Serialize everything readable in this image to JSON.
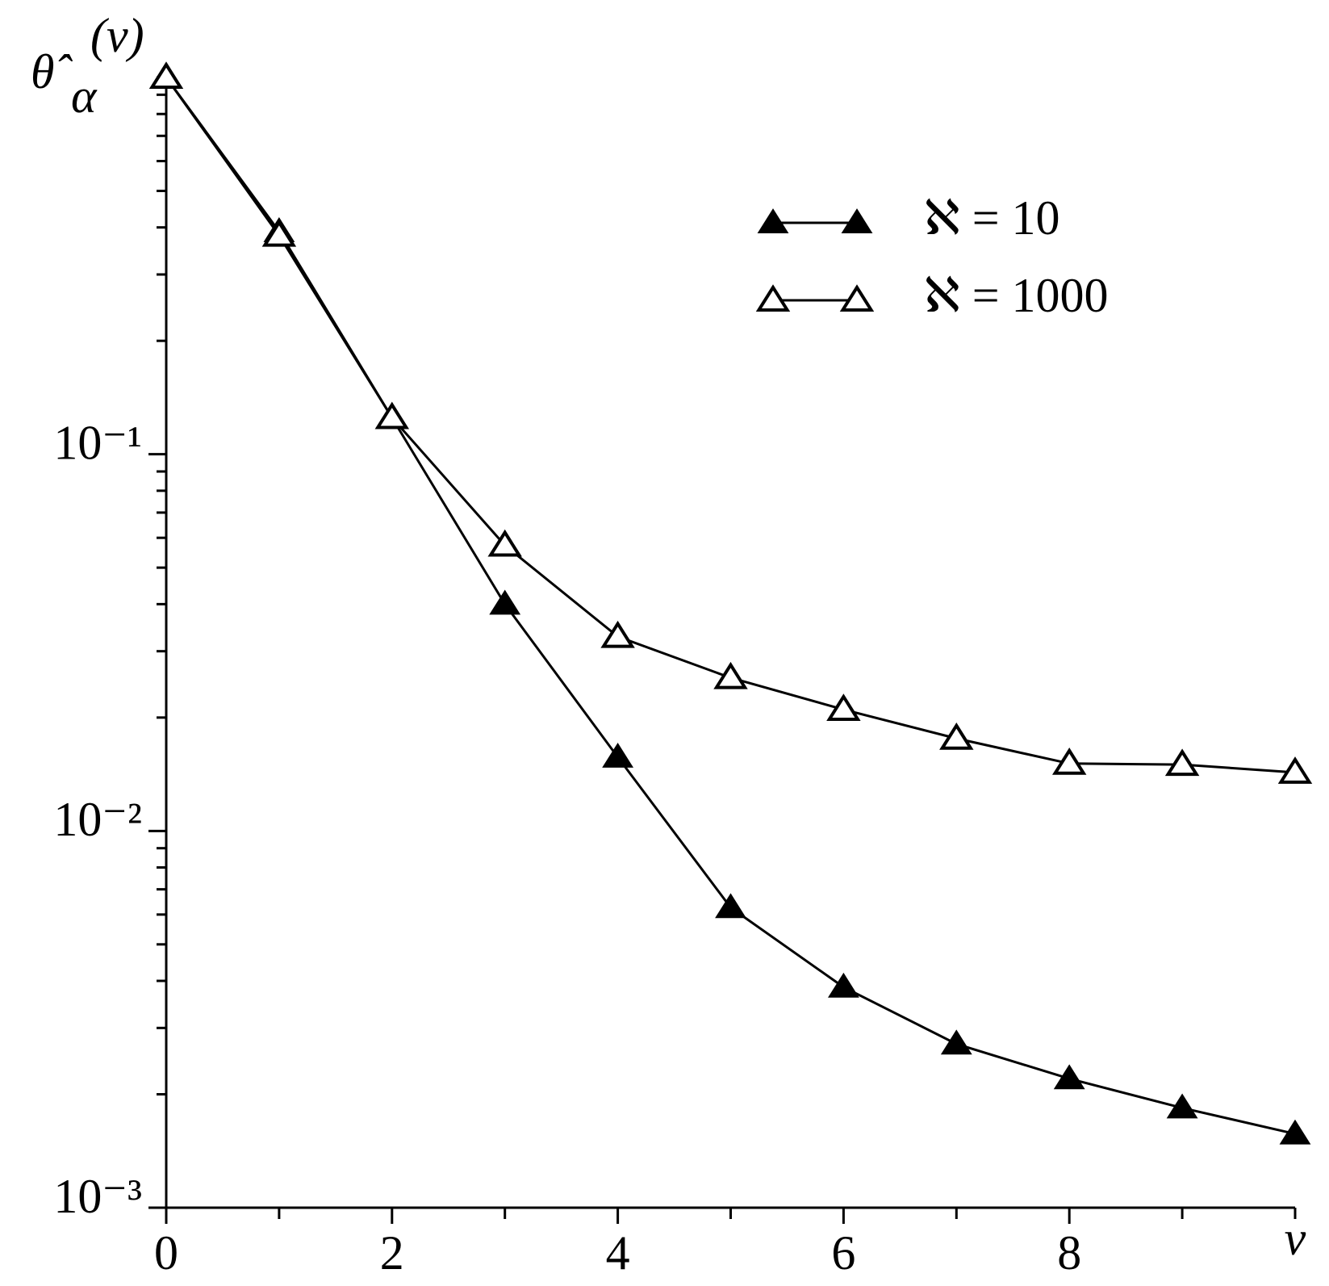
{
  "chart_data": {
    "type": "line",
    "ylabel": {
      "base": "θ̂",
      "sub": "α",
      "sup": "(ν)"
    },
    "xlabel": "ν",
    "x": [
      0,
      1,
      2,
      3,
      4,
      5,
      6,
      7,
      8,
      9,
      10
    ],
    "series": [
      {
        "name": "ℵ = 10",
        "color": "#000000",
        "marker": "filled-triangle",
        "values": [
          1.0,
          0.39,
          0.125,
          0.04,
          0.0157,
          0.00626,
          0.00385,
          0.00272,
          0.0022,
          0.00184,
          0.00157
        ]
      },
      {
        "name": "ℵ = 1000",
        "color": "#000000",
        "marker": "open-triangle",
        "values": [
          1.0,
          0.381,
          0.125,
          0.0573,
          0.0328,
          0.0255,
          0.021,
          0.0176,
          0.0151,
          0.015,
          0.0143
        ]
      }
    ],
    "xlim": [
      0,
      10
    ],
    "xticks": [
      0,
      2,
      4,
      6,
      8
    ],
    "minor_xticks": [
      1,
      3,
      5,
      7,
      9,
      10
    ],
    "ylim": [
      0.001,
      1
    ],
    "log_y": true,
    "yticks": [
      {
        "value": 0.001,
        "label": "10⁻³"
      },
      {
        "value": 0.01,
        "label": "10⁻²"
      },
      {
        "value": 0.1,
        "label": "10⁻¹"
      }
    ],
    "minor_yticks": [
      0.002,
      0.003,
      0.004,
      0.005,
      0.006,
      0.007,
      0.008,
      0.009,
      0.02,
      0.03,
      0.04,
      0.05,
      0.06,
      0.07,
      0.08,
      0.09,
      0.2,
      0.3,
      0.4,
      0.5,
      0.6,
      0.7,
      0.8,
      0.9,
      1
    ],
    "grid": false,
    "legend": "upper right"
  }
}
